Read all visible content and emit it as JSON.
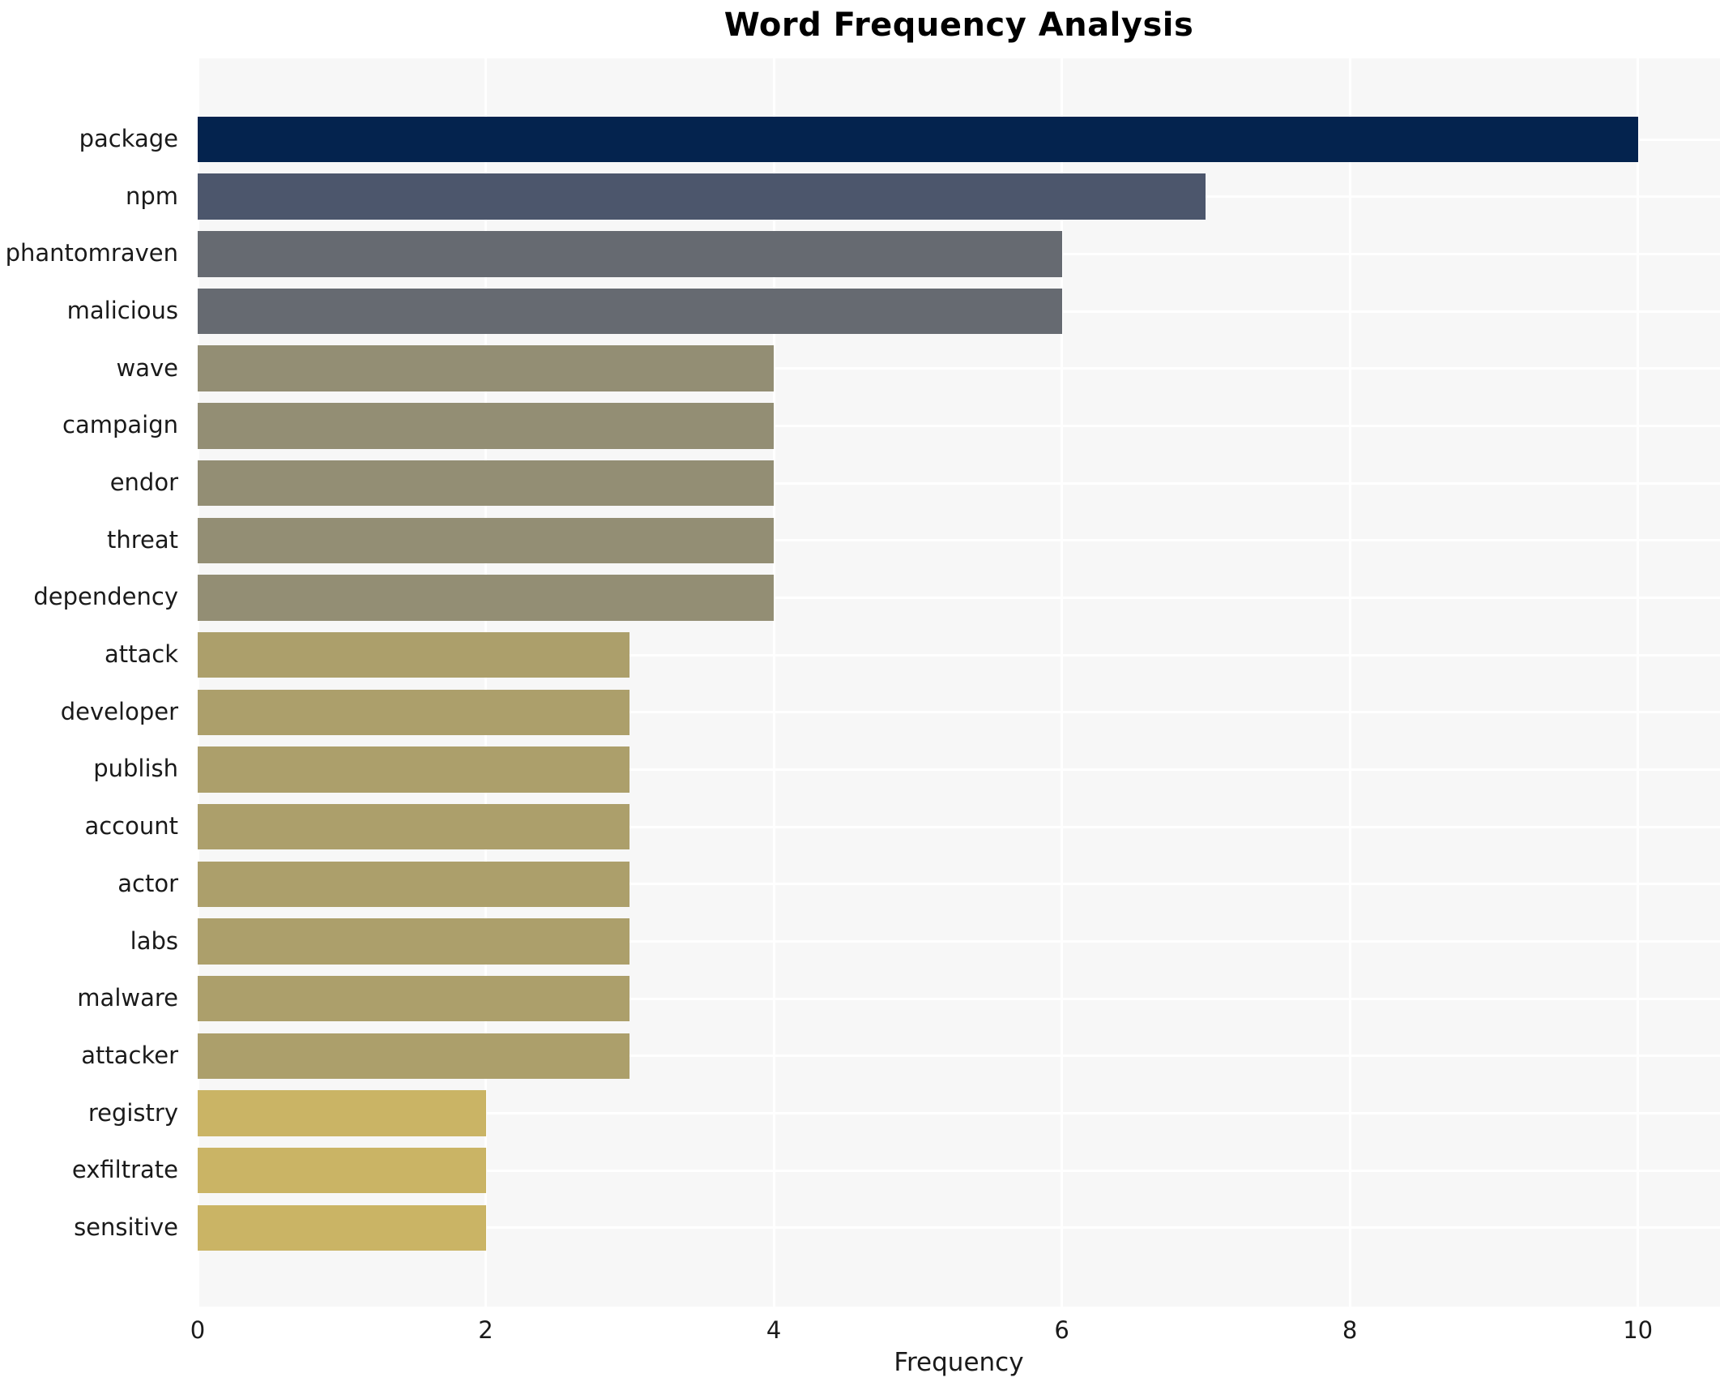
{
  "chart_data": {
    "type": "bar",
    "orientation": "horizontal",
    "title": "Word Frequency Analysis",
    "xlabel": "Frequency",
    "ylabel": "",
    "categories": [
      "package",
      "npm",
      "phantomraven",
      "malicious",
      "wave",
      "campaign",
      "endor",
      "threat",
      "dependency",
      "attack",
      "developer",
      "publish",
      "account",
      "actor",
      "labs",
      "malware",
      "attacker",
      "registry",
      "exfiltrate",
      "sensitive"
    ],
    "values": [
      10,
      7,
      6,
      6,
      4,
      4,
      4,
      4,
      4,
      3,
      3,
      3,
      3,
      3,
      3,
      3,
      3,
      2,
      2,
      2
    ],
    "bar_colors": [
      "#04234e",
      "#4c566c",
      "#666a71",
      "#666a71",
      "#938e74",
      "#938e74",
      "#938e74",
      "#938e74",
      "#938e74",
      "#ac9f6b",
      "#ac9f6b",
      "#ac9f6b",
      "#ac9f6b",
      "#ac9f6b",
      "#ac9f6b",
      "#ac9f6b",
      "#ac9f6b",
      "#cab465",
      "#cab465",
      "#cab465"
    ],
    "xticks": [
      0,
      2,
      4,
      6,
      8,
      10
    ],
    "xlim": [
      0,
      10.57
    ],
    "grid": true,
    "legend": false,
    "plot_bg": "#f7f7f7",
    "grid_color": "#ffffff",
    "text_color": "#1a1a1a"
  }
}
